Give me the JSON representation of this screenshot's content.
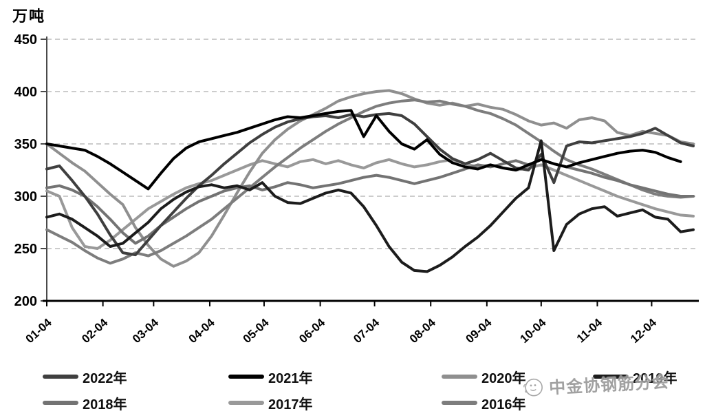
{
  "title": "万吨",
  "watermark": {
    "text": "中金协钢筋分会",
    "icon": "smiley-face-icon"
  },
  "chart_data": {
    "type": "line",
    "title": "",
    "ylabel": "万吨",
    "xlabel": "",
    "ylim": [
      200,
      450
    ],
    "y_ticks": [
      450,
      400,
      350,
      300,
      250,
      200
    ],
    "grid": "dashed-horizontal-at-250-300-350-400-450",
    "legend_position": "bottom",
    "x_tick_labels": [
      "01-04",
      "02-04",
      "03-04",
      "04-04",
      "05-04",
      "06-04",
      "07-04",
      "08-04",
      "09-04",
      "10-04",
      "11-04",
      "12-04"
    ],
    "x": [
      "01-04",
      "01-11",
      "01-18",
      "01-25",
      "02-01",
      "02-08",
      "02-15",
      "02-22",
      "03-01",
      "03-08",
      "03-15",
      "03-22",
      "03-29",
      "04-05",
      "04-12",
      "04-19",
      "04-26",
      "05-03",
      "05-10",
      "05-17",
      "05-24",
      "05-31",
      "06-07",
      "06-14",
      "06-21",
      "06-28",
      "07-05",
      "07-12",
      "07-19",
      "07-26",
      "08-02",
      "08-09",
      "08-16",
      "08-23",
      "08-30",
      "09-06",
      "09-13",
      "09-20",
      "09-27",
      "10-04",
      "10-11",
      "10-18",
      "10-25",
      "11-01",
      "11-08",
      "11-15",
      "11-22",
      "11-29",
      "12-06",
      "12-13",
      "12-20",
      "12-27"
    ],
    "series": [
      {
        "name": "2022年",
        "color": "#3f3f3f",
        "values": [
          326,
          329,
          315,
          300,
          283,
          263,
          246,
          244,
          258,
          272,
          285,
          298,
          310,
          320,
          331,
          341,
          351,
          359,
          366,
          371,
          374,
          376,
          377,
          375,
          378,
          376,
          378,
          379,
          377,
          369,
          357,
          345,
          336,
          331,
          335,
          341,
          334,
          327,
          325,
          340,
          313,
          348,
          352,
          351,
          353,
          355,
          357,
          360,
          365,
          358,
          351,
          348
        ]
      },
      {
        "name": "2021年",
        "color": "#000000",
        "values": [
          350,
          348,
          346,
          344,
          338,
          331,
          323,
          315,
          307,
          322,
          336,
          346,
          352,
          355,
          358,
          361,
          365,
          369,
          373,
          376,
          375,
          377,
          379,
          381,
          382,
          357,
          377,
          362,
          350,
          345,
          354,
          340,
          332,
          328,
          326,
          330,
          327,
          325,
          330,
          335,
          331,
          328,
          332,
          335,
          338,
          341,
          343,
          344,
          342,
          337,
          333,
          null
        ]
      },
      {
        "name": "2020年",
        "color": "#8f8f8f",
        "values": [
          350,
          341,
          332,
          324,
          313,
          302,
          292,
          270,
          253,
          240,
          233,
          238,
          246,
          262,
          282,
          303,
          323,
          341,
          354,
          364,
          372,
          378,
          384,
          391,
          395,
          398,
          400,
          401,
          398,
          393,
          389,
          387,
          389,
          386,
          388,
          385,
          383,
          378,
          372,
          368,
          370,
          365,
          373,
          375,
          372,
          361,
          358,
          362,
          360,
          358,
          352,
          350
        ]
      },
      {
        "name": "2019年",
        "color": "#1c1c1c",
        "values": [
          280,
          283,
          278,
          270,
          262,
          252,
          255,
          265,
          275,
          288,
          297,
          304,
          309,
          311,
          308,
          310,
          306,
          313,
          300,
          294,
          293,
          298,
          303,
          306,
          303,
          290,
          272,
          252,
          237,
          229,
          228,
          234,
          242,
          252,
          261,
          272,
          285,
          298,
          308,
          353,
          248,
          273,
          283,
          288,
          290,
          281,
          284,
          287,
          280,
          278,
          266,
          268
        ]
      },
      {
        "name": "2018年",
        "color": "#737373",
        "values": [
          308,
          310,
          306,
          300,
          290,
          278,
          265,
          255,
          262,
          272,
          280,
          288,
          295,
          300,
          305,
          308,
          310,
          306,
          309,
          313,
          311,
          308,
          310,
          312,
          315,
          318,
          320,
          318,
          315,
          312,
          315,
          318,
          322,
          326,
          330,
          328,
          331,
          334,
          330,
          335,
          331,
          328,
          325,
          322,
          318,
          315,
          311,
          308,
          305,
          302,
          300,
          300
        ]
      },
      {
        "name": "2017年",
        "color": "#999999",
        "values": [
          305,
          300,
          270,
          252,
          250,
          258,
          268,
          278,
          288,
          295,
          302,
          308,
          312,
          315,
          320,
          325,
          330,
          334,
          331,
          328,
          333,
          335,
          331,
          334,
          330,
          327,
          332,
          335,
          331,
          328,
          330,
          333,
          335,
          331,
          328,
          330,
          327,
          325,
          327,
          330,
          325,
          320,
          315,
          310,
          305,
          300,
          296,
          292,
          288,
          285,
          282,
          281
        ]
      },
      {
        "name": "2016年",
        "color": "#7d7d7d",
        "values": [
          268,
          262,
          256,
          248,
          241,
          236,
          240,
          246,
          243,
          248,
          255,
          262,
          270,
          278,
          288,
          298,
          308,
          318,
          328,
          337,
          346,
          354,
          362,
          369,
          375,
          381,
          386,
          389,
          391,
          392,
          390,
          391,
          388,
          386,
          382,
          379,
          374,
          368,
          360,
          352,
          343,
          335,
          330,
          326,
          321,
          316,
          311,
          306,
          302,
          300,
          299,
          300
        ]
      }
    ]
  },
  "legend": {
    "row1": [
      "2022年",
      "2021年",
      "2020年",
      "2019年"
    ],
    "row2": [
      "2018年",
      "2017年",
      "2016年"
    ]
  }
}
